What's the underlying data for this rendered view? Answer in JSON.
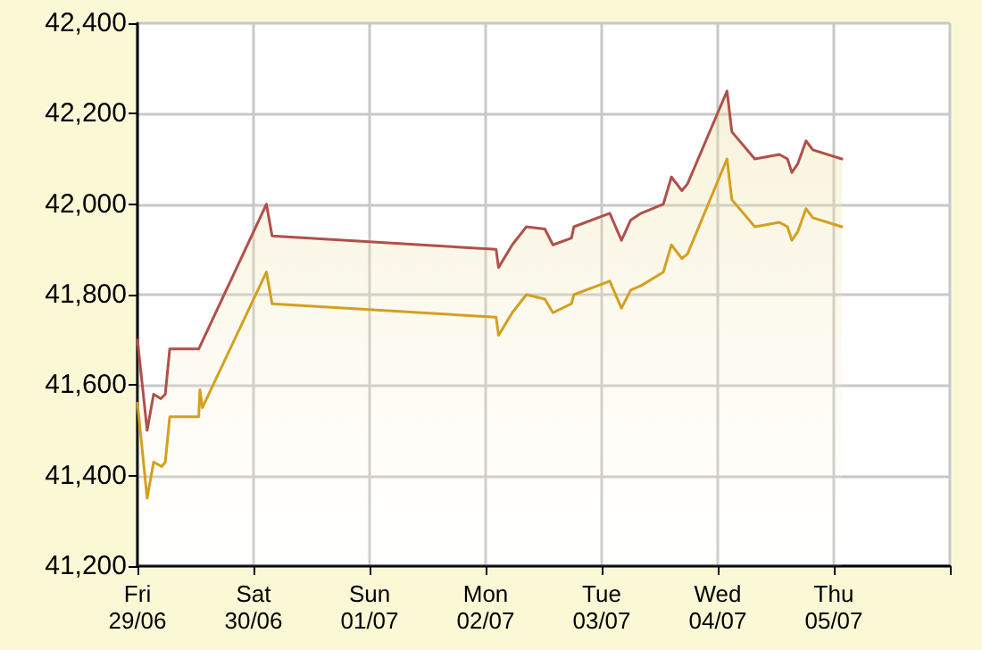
{
  "chart_data": {
    "type": "area",
    "series": [
      {
        "color": "#b0504a",
        "x": [
          "--06-29T00:00",
          "--06-29T02:00",
          "--06-29T03:20",
          "--06-29T04:50",
          "--06-29T05:45",
          "--06-29T06:40",
          "--06-29T12:40",
          "--06-30T02:40",
          "--06-30T03:50",
          "--07-02T02:10",
          "--07-02T02:40",
          "--07-02T05:30",
          "--07-02T08:25",
          "--07-02T12:15",
          "--07-02T13:55",
          "--07-02T17:45",
          "--07-02T18:15",
          "--07-03T01:40",
          "--07-03T04:05",
          "--07-03T06:00",
          "--07-03T08:10",
          "--07-03T12:45",
          "--07-03T14:25",
          "--07-03T16:35",
          "--07-03T17:45",
          "--07-04T01:55",
          "--07-04T02:55",
          "--07-04T07:40",
          "--07-04T12:45",
          "--07-04T14:25",
          "--07-04T15:20",
          "--07-04T16:35",
          "--07-04T18:15",
          "--07-04T19:40",
          "--07-05T01:40"
        ],
        "values": [
          41700,
          41500,
          41580,
          41570,
          41580,
          41680,
          41680,
          42000,
          41930,
          41900,
          41860,
          41910,
          41950,
          41945,
          41910,
          41925,
          41950,
          41980,
          41920,
          41965,
          41980,
          42000,
          42060,
          42030,
          42045,
          42250,
          42160,
          42100,
          42110,
          42100,
          42070,
          42090,
          42140,
          42120,
          42100
        ]
      },
      {
        "type": "line",
        "color": "#d4a020",
        "x": [
          "--06-29T00:00",
          "--06-29T02:00",
          "--06-29T03:20",
          "--06-29T05:00",
          "--06-29T05:45",
          "--06-29T06:40",
          "--06-29T12:40",
          "--06-29T12:55",
          "--06-29T13:25",
          "--06-30T02:40",
          "--06-30T03:50",
          "--07-02T02:10",
          "--07-02T02:40",
          "--07-02T05:30",
          "--07-02T08:25",
          "--07-02T12:15",
          "--07-02T13:55",
          "--07-02T17:45",
          "--07-02T18:15",
          "--07-03T01:40",
          "--07-03T04:05",
          "--07-03T06:00",
          "--07-03T08:10",
          "--07-03T12:45",
          "--07-03T14:25",
          "--07-03T16:35",
          "--07-03T17:45",
          "--07-04T01:55",
          "--07-04T02:55",
          "--07-04T07:40",
          "--07-04T12:45",
          "--07-04T14:25",
          "--07-04T15:20",
          "--07-04T16:35",
          "--07-04T18:15",
          "--07-04T19:40",
          "--07-05T01:40"
        ],
        "values": [
          41560,
          41350,
          41430,
          41420,
          41430,
          41530,
          41530,
          41590,
          41550,
          41850,
          41780,
          41750,
          41710,
          41760,
          41800,
          41790,
          41760,
          41780,
          41800,
          41830,
          41770,
          41810,
          41820,
          41850,
          41910,
          41880,
          41890,
          42100,
          42010,
          41950,
          41960,
          41950,
          41920,
          41940,
          41990,
          41970,
          41950
        ]
      }
    ],
    "xlim": [
      "--06-29",
      "--07-06"
    ],
    "xticks": [
      {
        "value": "--06-29",
        "label": "Fri\n29/06"
      },
      {
        "value": "--06-30",
        "label": "Sat\n30/06"
      },
      {
        "value": "--07-01",
        "label": "Sun\n01/07"
      },
      {
        "value": "--07-02",
        "label": "Mon\n02/07"
      },
      {
        "value": "--07-03",
        "label": "Tue\n03/07"
      },
      {
        "value": "--07-04",
        "label": "Wed\n04/07"
      },
      {
        "value": "--07-05",
        "label": "Thu\n05/07"
      },
      {
        "value": "--07-06",
        "label": null
      }
    ],
    "ylim": [
      41200,
      42400
    ],
    "yticks": [
      {
        "value": 41200,
        "label": "41,200"
      },
      {
        "value": 41400,
        "label": "41,400"
      },
      {
        "value": 41600,
        "label": "41,600"
      },
      {
        "value": 41800,
        "label": "41,800"
      },
      {
        "value": 42000,
        "label": "42,000"
      },
      {
        "value": 42200,
        "label": "42,200"
      },
      {
        "value": 42400,
        "label": "42,400"
      }
    ],
    "grid": true,
    "marker": "none",
    "line_style": "solid"
  }
}
